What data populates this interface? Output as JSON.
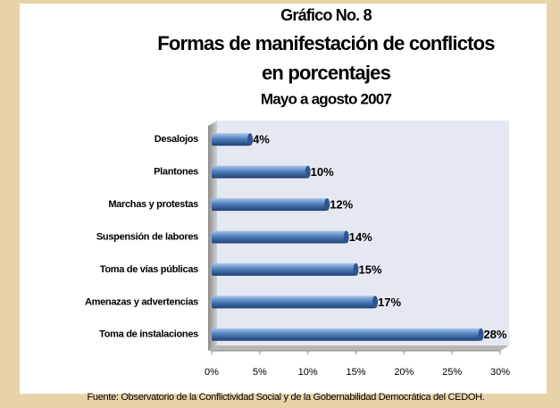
{
  "chart_data": {
    "type": "hbar",
    "title": "Gráfico No. 8",
    "subtitle": [
      "Formas de manifestación de conflictos",
      "en porcentajes",
      "Mayo a agosto 2007"
    ],
    "categories": [
      "Desalojos",
      "Plantones",
      "Marchas y protestas",
      "Suspensión de labores",
      "Toma de vías públicas",
      "Amenazas y advertencias",
      "Toma de instalaciones"
    ],
    "values": [
      4,
      10,
      12,
      14,
      15,
      17,
      28
    ],
    "value_labels": [
      "4%",
      "10%",
      "12%",
      "14%",
      "15%",
      "17%",
      "28%"
    ],
    "color": "#4f81bd",
    "xlim": [
      0,
      30
    ],
    "xticks": [
      {
        "value": 0,
        "label": "0%"
      },
      {
        "value": 5,
        "label": "5%"
      },
      {
        "value": 10,
        "label": "10%"
      },
      {
        "value": 15,
        "label": "15%"
      },
      {
        "value": 20,
        "label": "20%"
      },
      {
        "value": 25,
        "label": "25%"
      },
      {
        "value": 30,
        "label": "30%"
      }
    ],
    "source": "Fuente: Observatorio de la Conflictividad Social y de la Gobernabilidad Democrática del CEDOH."
  }
}
